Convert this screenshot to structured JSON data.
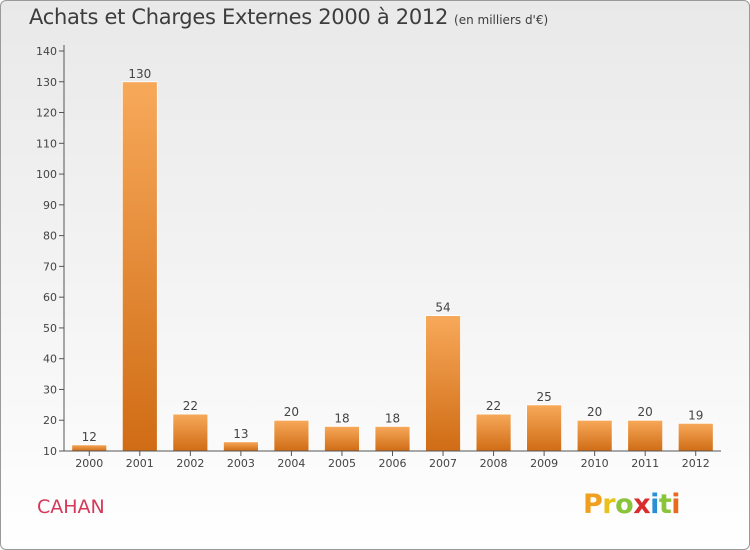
{
  "header": {
    "title": "Achats et Charges Externes 2000 à 2012",
    "unit": "(en milliers d'€)"
  },
  "commune": "CAHAN",
  "logo": {
    "letters": [
      "P",
      "r",
      "o",
      "x",
      "i",
      "t",
      "i"
    ],
    "colors": [
      "#f0a01e",
      "#e8c21a",
      "#8ac43a",
      "#d92c2c",
      "#2a8fd6",
      "#8ac43a",
      "#e86a1a"
    ]
  },
  "colors": {
    "bar_light": "#f7a95a",
    "bar_dark": "#d06c15",
    "axis": "#555555",
    "grid": "#c8c8c8"
  },
  "chart_data": {
    "type": "bar",
    "categories": [
      "2000",
      "2001",
      "2002",
      "2003",
      "2004",
      "2005",
      "2006",
      "2007",
      "2008",
      "2009",
      "2010",
      "2011",
      "2012"
    ],
    "values": [
      12,
      130,
      22,
      13,
      20,
      18,
      18,
      54,
      22,
      25,
      20,
      20,
      19
    ],
    "ylim": [
      10,
      140
    ],
    "yticks": [
      10,
      20,
      30,
      40,
      50,
      60,
      70,
      80,
      90,
      100,
      110,
      120,
      130,
      140
    ],
    "xlabel": "",
    "ylabel": "",
    "grid": false,
    "legend": "none"
  }
}
